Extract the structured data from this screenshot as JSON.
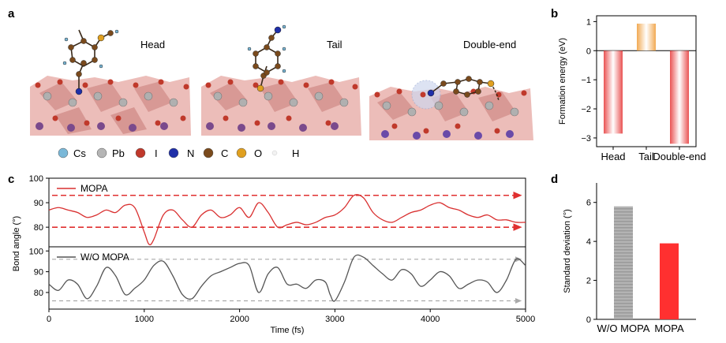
{
  "panel_letters": {
    "a": "a",
    "b": "b",
    "c": "c",
    "d": "d"
  },
  "panel_a": {
    "structure_labels": [
      "Head",
      "Tail",
      "Double-end"
    ],
    "legend": [
      {
        "label": "Cs",
        "color": "#7ab8d8"
      },
      {
        "label": "Pb",
        "color": "#b5b5b5"
      },
      {
        "label": "I",
        "color": "#c0392b"
      },
      {
        "label": "N",
        "color": "#1f2fa8"
      },
      {
        "label": "C",
        "color": "#7a4a1c"
      },
      {
        "label": "O",
        "color": "#e0a020"
      },
      {
        "label": "H",
        "color": "#f2f2f2"
      }
    ]
  },
  "chart_data": [
    {
      "panel": "b",
      "type": "bar",
      "categories": [
        "Head",
        "Tail",
        "Double-end"
      ],
      "values": [
        -2.85,
        0.93,
        -3.2
      ],
      "ylabel": "Formation energy (eV)",
      "ylim": [
        -3.3,
        1.2
      ],
      "yticks": [
        1,
        0,
        -1,
        -2,
        -3
      ],
      "colors": [
        "#e74040",
        "#f0a040",
        "#e74040"
      ]
    },
    {
      "panel": "c",
      "type": "line",
      "xlabel": "Time (fs)",
      "ylabel": "Bond angle (°)",
      "xlim": [
        0,
        5000
      ],
      "xticks": [
        0,
        1000,
        2000,
        3000,
        4000,
        5000
      ],
      "subplots": [
        {
          "name": "MOPA",
          "color": "#d93030",
          "ylim": [
            72,
            100
          ],
          "yticks": [
            80,
            90,
            100
          ],
          "reference_lines": [
            93,
            80
          ],
          "x": [
            0,
            100,
            200,
            300,
            400,
            500,
            600,
            700,
            800,
            900,
            1000,
            1050,
            1100,
            1200,
            1300,
            1400,
            1500,
            1600,
            1700,
            1800,
            1900,
            2000,
            2100,
            2200,
            2300,
            2400,
            2500,
            2600,
            2700,
            2800,
            2900,
            3000,
            3100,
            3200,
            3300,
            3400,
            3500,
            3600,
            3700,
            3800,
            3900,
            4000,
            4100,
            4200,
            4300,
            4400,
            4500,
            4600,
            4700,
            4800,
            4900,
            5000
          ],
          "y": [
            87,
            88,
            87,
            86,
            84,
            85,
            87,
            86,
            89,
            88,
            78,
            73,
            75,
            85,
            87,
            83,
            80,
            85,
            87,
            84,
            85,
            88,
            84,
            90,
            86,
            80,
            81,
            82,
            81,
            82,
            84,
            85,
            88,
            93,
            92,
            86,
            83,
            82,
            84,
            86,
            87,
            89,
            90,
            88,
            87,
            85,
            84,
            85,
            83,
            83,
            82,
            82
          ]
        },
        {
          "name": "W/O MOPA",
          "color": "#555555",
          "ylim": [
            72,
            102
          ],
          "yticks": [
            80,
            90,
            100
          ],
          "reference_lines": [
            96,
            76
          ],
          "x": [
            0,
            100,
            200,
            300,
            400,
            500,
            600,
            700,
            800,
            900,
            1000,
            1100,
            1200,
            1300,
            1400,
            1500,
            1600,
            1700,
            1800,
            1900,
            2000,
            2100,
            2200,
            2300,
            2400,
            2500,
            2600,
            2700,
            2800,
            2900,
            2950,
            3000,
            3100,
            3200,
            3300,
            3400,
            3500,
            3600,
            3700,
            3800,
            3900,
            4000,
            4100,
            4200,
            4300,
            4400,
            4500,
            4600,
            4700,
            4800,
            4900,
            5000
          ],
          "y": [
            84,
            81,
            86,
            84,
            77,
            83,
            92,
            88,
            79,
            82,
            86,
            93,
            95,
            88,
            79,
            77,
            83,
            88,
            90,
            92,
            94,
            93,
            80,
            89,
            92,
            84,
            84,
            82,
            86,
            85,
            79,
            76,
            85,
            97,
            97,
            93,
            89,
            86,
            91,
            89,
            83,
            86,
            90,
            88,
            82,
            84,
            86,
            85,
            80,
            86,
            96,
            93
          ]
        }
      ]
    },
    {
      "panel": "d",
      "type": "bar",
      "categories": [
        "W/O MOPA",
        "MOPA"
      ],
      "values": [
        5.8,
        3.9
      ],
      "ylabel": "Standard deviation (°)",
      "ylim": [
        0,
        7
      ],
      "yticks": [
        0,
        2,
        4,
        6
      ],
      "colors": [
        "#a8a8a8",
        "#ff3030"
      ]
    }
  ]
}
